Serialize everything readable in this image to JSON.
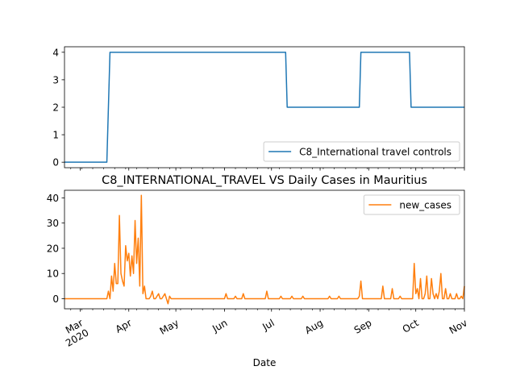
{
  "chart_data": [
    {
      "type": "line",
      "title": "",
      "xlabel": "",
      "ylabel": "",
      "ylim": [
        -0.2,
        4.2
      ],
      "xlim": [
        "2020-02-20",
        "2020-11-01"
      ],
      "yticks": [
        "0",
        "1",
        "2",
        "3",
        "4"
      ],
      "grid": false,
      "legend": {
        "position": "lower-right"
      },
      "series": [
        {
          "name": "C8_International travel controls",
          "color": "#1f77b4",
          "x": [
            "2020-02-20",
            "2020-03-18",
            "2020-03-20",
            "2020-07-10",
            "2020-07-11",
            "2020-08-26",
            "2020-08-27",
            "2020-09-27",
            "2020-09-28",
            "2020-11-01"
          ],
          "y": [
            0,
            0,
            4,
            4,
            2,
            2,
            4,
            4,
            2,
            2
          ]
        }
      ]
    },
    {
      "type": "line",
      "title": "C8_INTERNATIONAL_TRAVEL VS Daily Cases in Mauritius",
      "xlabel": "Date",
      "ylabel": "",
      "ylim": [
        -4,
        43
      ],
      "xlim": [
        "2020-02-20",
        "2020-11-01"
      ],
      "yticks": [
        "0",
        "10",
        "20",
        "30",
        "40"
      ],
      "grid": false,
      "legend": {
        "position": "top-right"
      },
      "xtick_labels": [
        {
          "label": "Mar",
          "sub": "2020",
          "date": "2020-03-01"
        },
        {
          "label": "Apr",
          "sub": "",
          "date": "2020-04-01"
        },
        {
          "label": "May",
          "sub": "",
          "date": "2020-05-01"
        },
        {
          "label": "Jun",
          "sub": "",
          "date": "2020-06-01"
        },
        {
          "label": "Jul",
          "sub": "",
          "date": "2020-07-01"
        },
        {
          "label": "Aug",
          "sub": "",
          "date": "2020-08-01"
        },
        {
          "label": "Sep",
          "sub": "",
          "date": "2020-09-01"
        },
        {
          "label": "Oct",
          "sub": "",
          "date": "2020-10-01"
        },
        {
          "label": "Nov",
          "sub": "",
          "date": "2020-11-01"
        }
      ],
      "series": [
        {
          "name": "new_cases",
          "color": "#ff7f0e",
          "x": [
            "2020-02-20",
            "2020-03-18",
            "2020-03-19",
            "2020-03-20",
            "2020-03-21",
            "2020-03-22",
            "2020-03-23",
            "2020-03-24",
            "2020-03-25",
            "2020-03-26",
            "2020-03-27",
            "2020-03-28",
            "2020-03-29",
            "2020-03-30",
            "2020-03-31",
            "2020-04-01",
            "2020-04-02",
            "2020-04-03",
            "2020-04-04",
            "2020-04-05",
            "2020-04-06",
            "2020-04-07",
            "2020-04-08",
            "2020-04-09",
            "2020-04-10",
            "2020-04-11",
            "2020-04-12",
            "2020-04-13",
            "2020-04-14",
            "2020-04-15",
            "2020-04-16",
            "2020-04-17",
            "2020-04-18",
            "2020-04-19",
            "2020-04-20",
            "2020-04-21",
            "2020-04-22",
            "2020-04-23",
            "2020-04-24",
            "2020-04-25",
            "2020-04-26",
            "2020-04-27",
            "2020-04-28",
            "2020-04-29",
            "2020-04-30",
            "2020-05-01",
            "2020-06-01",
            "2020-06-02",
            "2020-06-03",
            "2020-06-07",
            "2020-06-08",
            "2020-06-09",
            "2020-06-12",
            "2020-06-13",
            "2020-06-14",
            "2020-06-27",
            "2020-06-28",
            "2020-06-29",
            "2020-07-01",
            "2020-07-02",
            "2020-07-03",
            "2020-07-06",
            "2020-07-07",
            "2020-07-08",
            "2020-07-13",
            "2020-07-14",
            "2020-07-15",
            "2020-07-20",
            "2020-07-21",
            "2020-07-22",
            "2020-08-06",
            "2020-08-07",
            "2020-08-08",
            "2020-08-12",
            "2020-08-13",
            "2020-08-14",
            "2020-08-15",
            "2020-08-16",
            "2020-08-25",
            "2020-08-26",
            "2020-08-27",
            "2020-08-28",
            "2020-08-29",
            "2020-09-09",
            "2020-09-10",
            "2020-09-11",
            "2020-09-15",
            "2020-09-16",
            "2020-09-17",
            "2020-09-20",
            "2020-09-21",
            "2020-09-22",
            "2020-09-29",
            "2020-09-30",
            "2020-10-01",
            "2020-10-02",
            "2020-10-03",
            "2020-10-04",
            "2020-10-05",
            "2020-10-06",
            "2020-10-07",
            "2020-10-08",
            "2020-10-09",
            "2020-10-10",
            "2020-10-11",
            "2020-10-12",
            "2020-10-13",
            "2020-10-14",
            "2020-10-15",
            "2020-10-16",
            "2020-10-17",
            "2020-10-18",
            "2020-10-19",
            "2020-10-20",
            "2020-10-21",
            "2020-10-22",
            "2020-10-23",
            "2020-10-24",
            "2020-10-25",
            "2020-10-26",
            "2020-10-27",
            "2020-10-28",
            "2020-10-29",
            "2020-10-30",
            "2020-10-31",
            "2020-11-01"
          ],
          "y": [
            0,
            0,
            3,
            0,
            9,
            3,
            14,
            6,
            6,
            33,
            10,
            7,
            5,
            21,
            15,
            18,
            9,
            17,
            10,
            31,
            14,
            24,
            5,
            41,
            2,
            5,
            0,
            0,
            0,
            1,
            3,
            0,
            0,
            1,
            2,
            0,
            0,
            1,
            2,
            0,
            -2,
            1,
            0,
            0,
            0,
            0,
            0,
            2,
            0,
            0,
            1,
            0,
            0,
            2,
            0,
            0,
            3,
            0,
            0,
            0,
            0,
            0,
            1,
            0,
            0,
            1,
            0,
            0,
            1,
            0,
            0,
            1,
            0,
            0,
            1,
            0,
            0,
            0,
            0,
            1,
            7,
            0,
            0,
            0,
            5,
            0,
            0,
            4,
            0,
            0,
            1,
            0,
            0,
            14,
            2,
            4,
            0,
            8,
            0,
            0,
            2,
            9,
            0,
            0,
            8,
            2,
            0,
            2,
            0,
            3,
            10,
            0,
            0,
            4,
            0,
            0,
            2,
            0,
            0,
            0,
            2,
            0,
            0,
            1,
            0,
            5
          ]
        }
      ]
    }
  ]
}
